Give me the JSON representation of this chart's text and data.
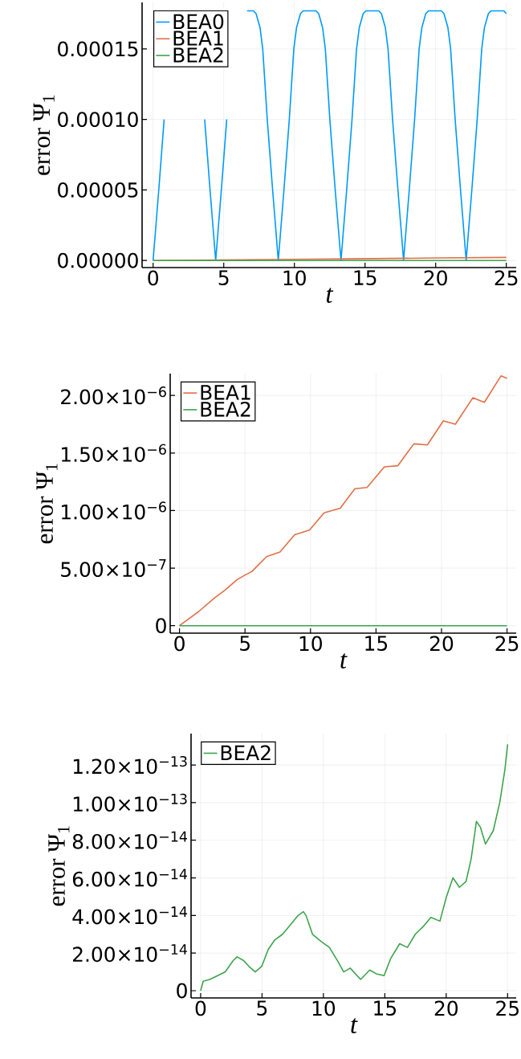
{
  "chart_data": [
    {
      "type": "line",
      "xlabel": "t",
      "ylabel": "error Ψ$_{1}$",
      "xlim": [
        -0.78,
        25.7
      ],
      "ylim": [
        -5e-06,
        0.000183
      ],
      "xticks": [
        0,
        5,
        10,
        15,
        20,
        25
      ],
      "yticks": [
        {
          "value": 0,
          "label": "0.00000"
        },
        {
          "value": 5e-05,
          "label": "0.00005"
        },
        {
          "value": 0.0001,
          "label": "0.00010"
        },
        {
          "value": 0.00015,
          "label": "0.00015"
        }
      ],
      "grid": true,
      "legend": "top left",
      "series": [
        {
          "name": "BEA0",
          "color": "#009afa",
          "x": [
            0,
            0.4,
            0.78,
            1.1,
            1.29,
            1.57,
            1.76,
            2.22,
            2.67,
            2.86,
            3.14,
            3.33,
            3.65,
            4.03,
            4.43,
            4.83,
            5.21,
            5.53,
            5.72,
            6.0,
            6.19,
            6.65,
            7.1,
            7.29,
            7.57,
            7.76,
            8.08,
            8.46,
            8.86,
            9.26,
            9.64,
            9.96,
            10.15,
            10.43,
            10.62,
            11.08,
            11.53,
            11.72,
            12.0,
            12.19,
            12.51,
            12.89,
            13.3,
            13.7,
            14.08,
            14.4,
            14.59,
            14.87,
            15.06,
            15.52,
            15.97,
            16.16,
            16.44,
            16.63,
            16.95,
            17.33,
            17.73,
            18.13,
            18.51,
            18.83,
            19.02,
            19.3,
            19.49,
            19.95,
            20.4,
            20.59,
            20.87,
            21.06,
            21.38,
            21.76,
            22.16,
            22.56,
            22.94,
            23.26,
            23.45,
            23.73,
            23.92,
            24.38,
            24.83,
            25.0
          ],
          "values": [
            0,
            5e-05,
            0.0001,
            null,
            null,
            null,
            null,
            null,
            null,
            null,
            null,
            null,
            0.0001,
            5e-05,
            0,
            5e-05,
            0.0001,
            null,
            null,
            null,
            null,
            0.000177,
            0.000177,
            0.000175,
            0.000165,
            0.00015,
            0.0001,
            5e-05,
            0,
            5e-05,
            0.0001,
            0.00015,
            0.000165,
            0.000175,
            0.000177,
            0.000177,
            0.000177,
            0.000175,
            0.000165,
            0.00015,
            0.0001,
            5e-05,
            0,
            5e-05,
            0.0001,
            0.00015,
            0.000165,
            0.000175,
            0.000177,
            0.000177,
            0.000177,
            0.000175,
            0.000165,
            0.00015,
            0.0001,
            5e-05,
            0,
            5e-05,
            0.0001,
            0.00015,
            0.000165,
            0.000175,
            0.000177,
            0.000177,
            0.000177,
            0.000175,
            0.000165,
            0.00015,
            0.0001,
            5e-05,
            0,
            5e-05,
            0.0001,
            0.00015,
            0.000165,
            0.000175,
            0.000177,
            0.000177,
            0.000177,
            0.000175
          ]
        },
        {
          "name": "BEA1",
          "color": "#e26f46",
          "x": [
            0,
            5.01,
            9.92,
            14.31,
            20.14,
            25.0
          ],
          "values": [
            0,
            4e-07,
            8e-07,
            1.2e-06,
            1.8e-06,
            2.2e-06
          ]
        },
        {
          "name": "BEA2",
          "color": "#3da44d",
          "x": [
            0,
            25.0
          ],
          "values": [
            0,
            0
          ]
        }
      ]
    },
    {
      "type": "line",
      "xlabel": "t",
      "ylabel": "error Ψ$_{1}$",
      "xlim": [
        -0.71,
        25.7
      ],
      "ylim": [
        -6.5e-08,
        2.19e-06
      ],
      "xticks": [
        0,
        5,
        10,
        15,
        20,
        25
      ],
      "yticks": [
        {
          "value": 0,
          "label": "0"
        },
        {
          "value": 5e-07,
          "label": "5.00×10$^{−7}$"
        },
        {
          "value": 1e-06,
          "label": "1.00×10$^{−6}$"
        },
        {
          "value": 1.5e-06,
          "label": "1.50×10$^{−6}$"
        },
        {
          "value": 2e-06,
          "label": "2.00×10$^{−6}$"
        }
      ],
      "grid": true,
      "legend": "top left",
      "series": [
        {
          "name": "BEA1",
          "color": "#e26f46",
          "x": [
            0,
            1.43,
            2.66,
            3.48,
            4.4,
            5.01,
            5.52,
            6.65,
            7.67,
            8.79,
            9.92,
            11.04,
            12.27,
            13.39,
            14.31,
            15.64,
            16.67,
            17.89,
            18.92,
            20.14,
            21.06,
            22.39,
            23.27,
            24.54,
            25.0
          ],
          "values": [
            0,
            1.2e-07,
            2.4e-07,
            3.1e-07,
            4e-07,
            4.4e-07,
            4.7e-07,
            6e-07,
            6.4e-07,
            7.9e-07,
            8.3e-07,
            9.8e-07,
            1.02e-06,
            1.19e-06,
            1.2e-06,
            1.38e-06,
            1.39e-06,
            1.58e-06,
            1.57e-06,
            1.78e-06,
            1.75e-06,
            1.98e-06,
            1.94e-06,
            2.17e-06,
            2.15e-06
          ]
        },
        {
          "name": "BEA2",
          "color": "#3da44d",
          "x": [
            0,
            25.0
          ],
          "values": [
            0,
            0
          ]
        }
      ]
    },
    {
      "type": "line",
      "xlabel": "t",
      "ylabel": "error Ψ$_{1}$",
      "xlim": [
        -0.78,
        25.7
      ],
      "ylim": [
        -3.85e-15,
        1.367e-13
      ],
      "xticks": [
        0,
        5,
        10,
        15,
        20,
        25
      ],
      "yticks": [
        {
          "value": 0,
          "label": "0"
        },
        {
          "value": 2e-14,
          "label": "2.00×10$^{−14}$"
        },
        {
          "value": 4e-14,
          "label": "4.00×10$^{−14}$"
        },
        {
          "value": 6e-14,
          "label": "6.00×10$^{−14}$"
        },
        {
          "value": 8e-14,
          "label": "8.00×10$^{−14}$"
        },
        {
          "value": 1e-13,
          "label": "1.00×10$^{−13}$"
        },
        {
          "value": 1.2e-13,
          "label": "1.20×10$^{−13}$"
        }
      ],
      "grid": true,
      "legend": "top left",
      "series": [
        {
          "name": "BEA2",
          "color": "#3da44d",
          "x": [
            0,
            0.21,
            0.74,
            1.38,
            2.01,
            2.65,
            2.97,
            3.5,
            3.92,
            4.45,
            4.98,
            5.51,
            6.04,
            6.67,
            7.31,
            7.94,
            8.37,
            8.58,
            9.11,
            9.85,
            10.49,
            11.23,
            11.65,
            12.18,
            13.03,
            13.77,
            14.3,
            14.94,
            15.47,
            16.21,
            16.84,
            17.48,
            18.11,
            18.75,
            19.49,
            20.02,
            20.55,
            21.08,
            21.61,
            22.03,
            22.46,
            22.78,
            23.2,
            23.83,
            24.36,
            24.79,
            25.0
          ],
          "values": [
            0,
            5e-15,
            6e-15,
            8e-15,
            1e-14,
            1.6e-14,
            1.8e-14,
            1.6e-14,
            1.3e-14,
            1e-14,
            1.3e-14,
            2.2e-14,
            2.7e-14,
            3e-14,
            3.5e-14,
            4e-14,
            4.2e-14,
            4e-14,
            3e-14,
            2.6e-14,
            2.3e-14,
            1.5e-14,
            1e-14,
            1.2e-14,
            6e-15,
            1.1e-14,
            9e-15,
            8e-15,
            1.7e-14,
            2.5e-14,
            2.3e-14,
            3e-14,
            3.4e-14,
            3.9e-14,
            3.7e-14,
            5e-14,
            6e-14,
            5.5e-14,
            5.8e-14,
            7e-14,
            9e-14,
            8.7e-14,
            7.8e-14,
            8.5e-14,
            1e-13,
            1.18e-13,
            1.31e-13
          ]
        }
      ]
    }
  ]
}
